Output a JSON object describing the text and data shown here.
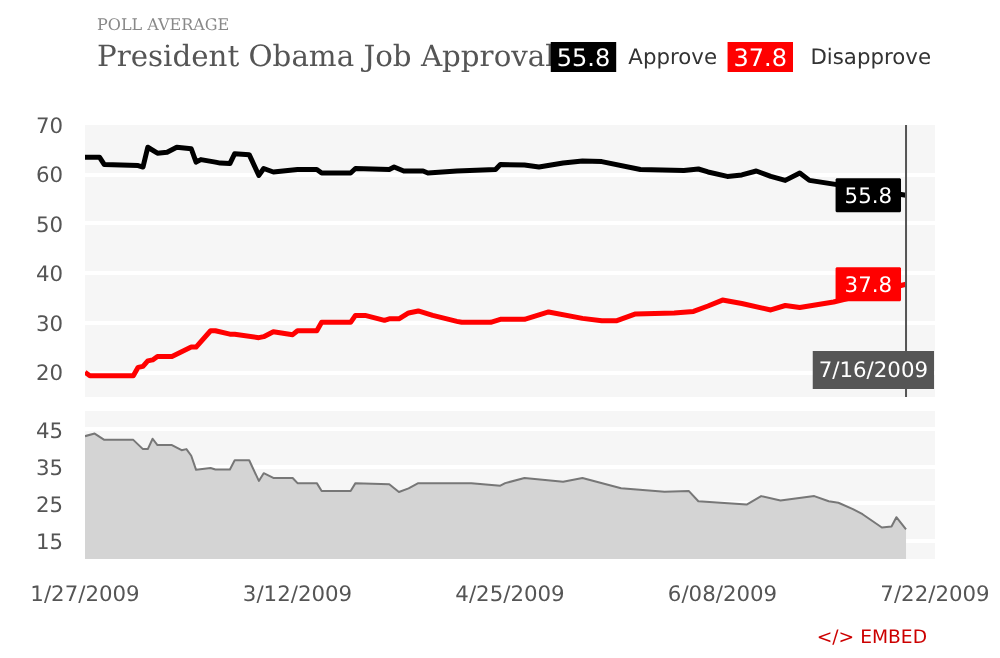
{
  "chart_data": [
    {
      "type": "line",
      "title": "President Obama Job Approval",
      "subtitle": "POLL AVERAGE",
      "legend": "top right",
      "grid": "y",
      "tick_labels": "y",
      "xlim": [
        "2009-01-27",
        "2009-07-22"
      ],
      "ylim": [
        15,
        70
      ],
      "yticks": [
        20,
        30,
        40,
        50,
        60,
        70
      ],
      "ref_lines": [
        {
          "axis": "x",
          "value": "2009-07-16",
          "label": "7/16/2009",
          "color": "#555555"
        }
      ],
      "series": [
        {
          "name": "Approve",
          "color": "#000000",
          "x": [
            "2009-01-27",
            "2009-01-30",
            "2009-01-31",
            "2009-02-07",
            "2009-02-08",
            "2009-02-09",
            "2009-02-11",
            "2009-02-13",
            "2009-02-15",
            "2009-02-18",
            "2009-02-19",
            "2009-02-20",
            "2009-02-23",
            "2009-02-24",
            "2009-02-26",
            "2009-02-27",
            "2009-03-02",
            "2009-03-04",
            "2009-03-05",
            "2009-03-07",
            "2009-03-12",
            "2009-03-16",
            "2009-03-17",
            "2009-03-23",
            "2009-03-24",
            "2009-03-31",
            "2009-04-01",
            "2009-04-03",
            "2009-04-07",
            "2009-04-08",
            "2009-04-14",
            "2009-04-22",
            "2009-04-23",
            "2009-04-28",
            "2009-05-01",
            "2009-05-06",
            "2009-05-10",
            "2009-05-14",
            "2009-05-22",
            "2009-05-31",
            "2009-06-03",
            "2009-06-05",
            "2009-06-09",
            "2009-06-12",
            "2009-06-15",
            "2009-06-18",
            "2009-06-21",
            "2009-06-24",
            "2009-06-26",
            "2009-07-16"
          ],
          "values": [
            63.5,
            63.5,
            62,
            61.8,
            61.5,
            65.5,
            64.3,
            64.5,
            65.5,
            65.2,
            62.5,
            63,
            62.5,
            62.3,
            62.2,
            64.2,
            64,
            59.8,
            61.2,
            60.5,
            61,
            61,
            60.3,
            60.3,
            61.2,
            61,
            61.5,
            60.7,
            60.7,
            60.3,
            60.7,
            61,
            62,
            61.9,
            61.5,
            62.3,
            62.7,
            62.6,
            61,
            60.8,
            61.1,
            60.5,
            59.6,
            59.9,
            60.7,
            59.6,
            58.8,
            60.3,
            58.8,
            55.8
          ],
          "value_labels": [
            null,
            null,
            null,
            null,
            null,
            null,
            null,
            null,
            null,
            null,
            null,
            null,
            null,
            null,
            null,
            null,
            null,
            null,
            null,
            null,
            null,
            null,
            null,
            null,
            null,
            null,
            null,
            null,
            null,
            null,
            null,
            null,
            null,
            null,
            null,
            null,
            null,
            null,
            null,
            null,
            null,
            null,
            null,
            null,
            null,
            null,
            null,
            null,
            null,
            "55.8"
          ]
        },
        {
          "name": "Disapprove",
          "color": "#ff0000",
          "x": [
            "2009-01-27",
            "2009-01-28",
            "2009-02-06",
            "2009-02-07",
            "2009-02-08",
            "2009-02-09",
            "2009-02-10",
            "2009-02-11",
            "2009-02-14",
            "2009-02-18",
            "2009-02-19",
            "2009-02-22",
            "2009-02-23",
            "2009-02-26",
            "2009-02-27",
            "2009-03-04",
            "2009-03-05",
            "2009-03-07",
            "2009-03-11",
            "2009-03-12",
            "2009-03-16",
            "2009-03-17",
            "2009-03-23",
            "2009-03-24",
            "2009-03-26",
            "2009-03-30",
            "2009-03-31",
            "2009-04-02",
            "2009-04-04",
            "2009-04-06",
            "2009-04-09",
            "2009-04-14",
            "2009-04-15",
            "2009-04-21",
            "2009-04-23",
            "2009-04-28",
            "2009-05-03",
            "2009-05-10",
            "2009-05-14",
            "2009-05-17",
            "2009-05-21",
            "2009-05-29",
            "2009-06-02",
            "2009-06-05",
            "2009-06-08",
            "2009-06-12",
            "2009-06-18",
            "2009-06-21",
            "2009-06-24",
            "2009-07-01",
            "2009-07-16"
          ],
          "values": [
            20,
            19.3,
            19.3,
            21,
            21.2,
            22.3,
            22.5,
            23.2,
            23.2,
            25.1,
            25.1,
            28.4,
            28.4,
            27.7,
            27.7,
            27,
            27.2,
            28.2,
            27.6,
            28.4,
            28.4,
            30.1,
            30.1,
            31.5,
            31.5,
            30.5,
            30.8,
            30.8,
            32,
            32.4,
            31.5,
            30.3,
            30.1,
            30.1,
            30.7,
            30.7,
            32.2,
            30.9,
            30.4,
            30.4,
            31.8,
            32,
            32.3,
            33.4,
            34.6,
            33.9,
            32.6,
            33.5,
            33.1,
            34.2,
            37.8
          ],
          "value_labels": [
            null,
            null,
            null,
            null,
            null,
            null,
            null,
            null,
            null,
            null,
            null,
            null,
            null,
            null,
            null,
            null,
            null,
            null,
            null,
            null,
            null,
            null,
            null,
            null,
            null,
            null,
            null,
            null,
            null,
            null,
            null,
            null,
            null,
            null,
            null,
            null,
            null,
            null,
            null,
            null,
            null,
            null,
            null,
            null,
            null,
            null,
            null,
            null,
            null,
            null,
            "37.8"
          ]
        }
      ]
    },
    {
      "type": "area",
      "grid": "y",
      "xlim": [
        "2009-01-27",
        "2009-07-22"
      ],
      "ylim": [
        10,
        50
      ],
      "yticks": [
        15,
        25,
        35,
        45
      ],
      "xticks": [
        {
          "value": "2009-01-27",
          "label": "1/27/2009"
        },
        {
          "value": "2009-03-12",
          "label": "3/12/2009"
        },
        {
          "value": "2009-04-25",
          "label": "4/25/2009"
        },
        {
          "value": "2009-06-08",
          "label": "6/08/2009"
        },
        {
          "value": "2009-07-22",
          "label": "7/22/2009"
        }
      ],
      "annotations": [
        "</> EMBED"
      ],
      "series": [
        {
          "color": "#d4d4d4",
          "x": [
            "2009-01-27",
            "2009-01-29",
            "2009-01-31",
            "2009-02-06",
            "2009-02-08",
            "2009-02-09",
            "2009-02-10",
            "2009-02-11",
            "2009-02-14",
            "2009-02-16",
            "2009-02-17",
            "2009-02-18",
            "2009-02-19",
            "2009-02-22",
            "2009-02-23",
            "2009-02-26",
            "2009-02-27",
            "2009-03-02",
            "2009-03-04",
            "2009-03-05",
            "2009-03-07",
            "2009-03-11",
            "2009-03-12",
            "2009-03-16",
            "2009-03-17",
            "2009-03-23",
            "2009-03-24",
            "2009-03-31",
            "2009-04-02",
            "2009-04-04",
            "2009-04-06",
            "2009-04-17",
            "2009-04-23",
            "2009-04-24",
            "2009-04-28",
            "2009-05-06",
            "2009-05-10",
            "2009-05-18",
            "2009-05-27",
            "2009-06-01",
            "2009-06-03",
            "2009-06-13",
            "2009-06-16",
            "2009-06-20",
            "2009-06-27",
            "2009-06-30",
            "2009-07-02",
            "2009-07-05",
            "2009-07-07",
            "2009-07-11",
            "2009-07-13",
            "2009-07-14",
            "2009-07-16"
          ],
          "values": [
            43.2,
            43.9,
            42.2,
            42.2,
            39.7,
            39.7,
            42.5,
            40.8,
            40.8,
            39.4,
            39.7,
            37.9,
            34.1,
            34.6,
            34.2,
            34.2,
            36.7,
            36.7,
            31.1,
            33.2,
            31.9,
            31.9,
            30.5,
            30.5,
            28.4,
            28.4,
            30.5,
            30.2,
            28.1,
            29.1,
            30.5,
            30.5,
            29.8,
            30.5,
            31.9,
            30.9,
            31.9,
            29.1,
            28.2,
            28.4,
            25.6,
            24.7,
            27,
            25.8,
            27,
            25.6,
            25.2,
            23.5,
            22.1,
            18.5,
            18.8,
            21.3,
            18
          ]
        }
      ]
    }
  ]
}
